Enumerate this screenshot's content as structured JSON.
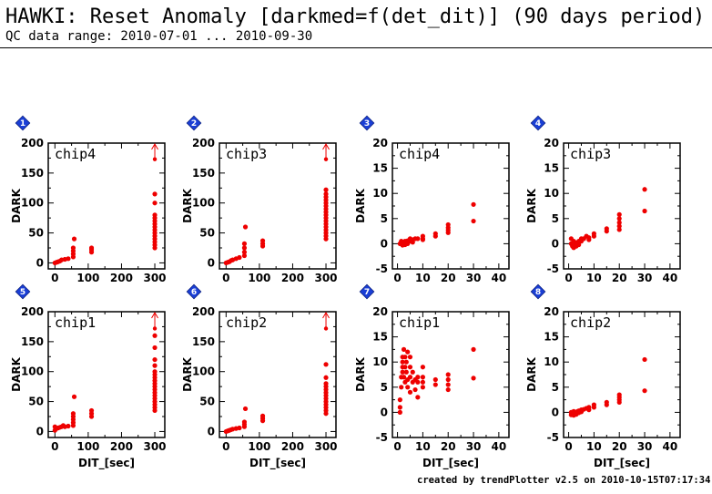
{
  "header": {
    "title": "HAWKI: Reset Anomaly [darkmed=f(det_dit)] (90 days period)",
    "subtitle": "QC data range: 2010-07-01 ... 2010-09-30"
  },
  "footer": "created by trendPlotter v2.5 on 2010-10-15T07:17:34",
  "colors": {
    "points": "#ee0000",
    "badge": "#1a3fd6",
    "axes": "#000000"
  },
  "chart_data": [
    {
      "type": "scatter",
      "badge": "1",
      "panel_label": "chip4",
      "xlabel": "",
      "ylabel": "DARK",
      "xlim": [
        -20,
        330
      ],
      "ylim": [
        -10,
        200
      ],
      "xticks": [
        0,
        100,
        200,
        300
      ],
      "yticks": [
        0,
        50,
        100,
        150,
        200
      ],
      "outlier_arrow_x": 300,
      "outlier_point": [
        300,
        173
      ],
      "points": [
        [
          0,
          0
        ],
        [
          5,
          1
        ],
        [
          10,
          2
        ],
        [
          15,
          3
        ],
        [
          20,
          5
        ],
        [
          30,
          6
        ],
        [
          40,
          7
        ],
        [
          55,
          10
        ],
        [
          55,
          15
        ],
        [
          55,
          20
        ],
        [
          55,
          25
        ],
        [
          58,
          40
        ],
        [
          110,
          18
        ],
        [
          110,
          22
        ],
        [
          110,
          25
        ],
        [
          300,
          25
        ],
        [
          300,
          30
        ],
        [
          300,
          35
        ],
        [
          300,
          40
        ],
        [
          300,
          45
        ],
        [
          300,
          50
        ],
        [
          300,
          55
        ],
        [
          300,
          60
        ],
        [
          300,
          65
        ],
        [
          300,
          70
        ],
        [
          300,
          75
        ],
        [
          300,
          80
        ],
        [
          300,
          100
        ],
        [
          300,
          115
        ]
      ]
    },
    {
      "type": "scatter",
      "badge": "2",
      "panel_label": "chip3",
      "xlabel": "",
      "ylabel": "DARK",
      "xlim": [
        -20,
        330
      ],
      "ylim": [
        -10,
        200
      ],
      "xticks": [
        0,
        100,
        200,
        300
      ],
      "yticks": [
        0,
        50,
        100,
        150,
        200
      ],
      "outlier_arrow_x": 300,
      "outlier_point": [
        300,
        173
      ],
      "points": [
        [
          0,
          0
        ],
        [
          5,
          1
        ],
        [
          10,
          2
        ],
        [
          15,
          4
        ],
        [
          20,
          5
        ],
        [
          30,
          7
        ],
        [
          40,
          9
        ],
        [
          55,
          12
        ],
        [
          55,
          18
        ],
        [
          55,
          25
        ],
        [
          55,
          32
        ],
        [
          58,
          60
        ],
        [
          110,
          28
        ],
        [
          110,
          32
        ],
        [
          110,
          37
        ],
        [
          300,
          40
        ],
        [
          300,
          45
        ],
        [
          300,
          50
        ],
        [
          300,
          55
        ],
        [
          300,
          60
        ],
        [
          300,
          65
        ],
        [
          300,
          70
        ],
        [
          300,
          75
        ],
        [
          300,
          80
        ],
        [
          300,
          85
        ],
        [
          300,
          90
        ],
        [
          300,
          95
        ],
        [
          300,
          100
        ],
        [
          300,
          105
        ],
        [
          300,
          110
        ],
        [
          300,
          115
        ],
        [
          300,
          122
        ]
      ]
    },
    {
      "type": "scatter",
      "badge": "3",
      "panel_label": "chip4",
      "xlabel": "",
      "ylabel": "DARK",
      "xlim": [
        -2,
        44
      ],
      "ylim": [
        -5,
        20
      ],
      "xticks": [
        0,
        10,
        20,
        30,
        40
      ],
      "yticks": [
        -5,
        0,
        5,
        10,
        15,
        20
      ],
      "points": [
        [
          1,
          0
        ],
        [
          1.5,
          0.5
        ],
        [
          2,
          0.3
        ],
        [
          2,
          -0.3
        ],
        [
          2.5,
          0
        ],
        [
          3,
          0.5
        ],
        [
          3,
          -0.2
        ],
        [
          3.5,
          0.2
        ],
        [
          4,
          0.6
        ],
        [
          4,
          0
        ],
        [
          5,
          0.5
        ],
        [
          5,
          1
        ],
        [
          6,
          0.8
        ],
        [
          6,
          0.3
        ],
        [
          7,
          1
        ],
        [
          8,
          1
        ],
        [
          10,
          1
        ],
        [
          10,
          1.5
        ],
        [
          10,
          0.8
        ],
        [
          15,
          1.5
        ],
        [
          15,
          2
        ],
        [
          20,
          2.2
        ],
        [
          20,
          2.7
        ],
        [
          20,
          3.2
        ],
        [
          20,
          3.8
        ],
        [
          30,
          4.5
        ],
        [
          30,
          7.8
        ]
      ]
    },
    {
      "type": "scatter",
      "badge": "4",
      "panel_label": "chip3",
      "xlabel": "",
      "ylabel": "DARK",
      "xlim": [
        -2,
        44
      ],
      "ylim": [
        -5,
        20
      ],
      "xticks": [
        0,
        10,
        20,
        30,
        40
      ],
      "yticks": [
        -5,
        0,
        5,
        10,
        15,
        20
      ],
      "points": [
        [
          1,
          1
        ],
        [
          1,
          0
        ],
        [
          1.5,
          -0.5
        ],
        [
          2,
          -0.8
        ],
        [
          2,
          0.5
        ],
        [
          2.5,
          -0.3
        ],
        [
          3,
          -0.5
        ],
        [
          3,
          0.2
        ],
        [
          3.5,
          0
        ],
        [
          4,
          0.5
        ],
        [
          4,
          -0.2
        ],
        [
          5,
          0.5
        ],
        [
          5,
          1
        ],
        [
          6,
          1
        ],
        [
          7,
          1.5
        ],
        [
          8,
          1.2
        ],
        [
          8,
          0.8
        ],
        [
          10,
          1.5
        ],
        [
          10,
          2
        ],
        [
          15,
          2.5
        ],
        [
          15,
          3
        ],
        [
          20,
          2.8
        ],
        [
          20,
          3.5
        ],
        [
          20,
          4.2
        ],
        [
          20,
          5
        ],
        [
          20,
          5.8
        ],
        [
          30,
          6.5
        ],
        [
          30,
          10.8
        ]
      ]
    },
    {
      "type": "scatter",
      "badge": "5",
      "panel_label": "chip1",
      "xlabel": "DIT_[sec]",
      "ylabel": "DARK",
      "xlim": [
        -20,
        330
      ],
      "ylim": [
        -10,
        200
      ],
      "xticks": [
        0,
        100,
        200,
        300
      ],
      "yticks": [
        0,
        50,
        100,
        150,
        200
      ],
      "outlier_arrow_x": 300,
      "outlier_point": [
        300,
        172
      ],
      "points": [
        [
          0,
          2
        ],
        [
          0,
          8
        ],
        [
          5,
          5
        ],
        [
          10,
          6
        ],
        [
          15,
          7
        ],
        [
          20,
          8
        ],
        [
          25,
          10
        ],
        [
          30,
          8
        ],
        [
          40,
          9
        ],
        [
          55,
          10
        ],
        [
          55,
          15
        ],
        [
          55,
          20
        ],
        [
          55,
          25
        ],
        [
          55,
          30
        ],
        [
          58,
          58
        ],
        [
          110,
          25
        ],
        [
          110,
          30
        ],
        [
          110,
          35
        ],
        [
          300,
          35
        ],
        [
          300,
          40
        ],
        [
          300,
          45
        ],
        [
          300,
          50
        ],
        [
          300,
          55
        ],
        [
          300,
          60
        ],
        [
          300,
          65
        ],
        [
          300,
          70
        ],
        [
          300,
          75
        ],
        [
          300,
          80
        ],
        [
          300,
          85
        ],
        [
          300,
          90
        ],
        [
          300,
          95
        ],
        [
          300,
          100
        ],
        [
          300,
          110
        ],
        [
          300,
          120
        ],
        [
          300,
          140
        ],
        [
          300,
          160
        ]
      ]
    },
    {
      "type": "scatter",
      "badge": "6",
      "panel_label": "chip2",
      "xlabel": "DIT_[sec]",
      "ylabel": "DARK",
      "xlim": [
        -20,
        330
      ],
      "ylim": [
        -10,
        200
      ],
      "xticks": [
        0,
        100,
        200,
        300
      ],
      "yticks": [
        0,
        50,
        100,
        150,
        200
      ],
      "outlier_arrow_x": 300,
      "outlier_point": [
        300,
        172
      ],
      "points": [
        [
          0,
          0
        ],
        [
          5,
          1
        ],
        [
          10,
          2
        ],
        [
          15,
          3
        ],
        [
          20,
          4
        ],
        [
          30,
          5
        ],
        [
          40,
          6
        ],
        [
          55,
          8
        ],
        [
          55,
          12
        ],
        [
          55,
          16
        ],
        [
          58,
          38
        ],
        [
          110,
          18
        ],
        [
          110,
          22
        ],
        [
          110,
          26
        ],
        [
          300,
          30
        ],
        [
          300,
          35
        ],
        [
          300,
          40
        ],
        [
          300,
          45
        ],
        [
          300,
          50
        ],
        [
          300,
          55
        ],
        [
          300,
          60
        ],
        [
          300,
          65
        ],
        [
          300,
          70
        ],
        [
          300,
          75
        ],
        [
          300,
          80
        ],
        [
          300,
          90
        ],
        [
          300,
          112
        ]
      ]
    },
    {
      "type": "scatter",
      "badge": "7",
      "panel_label": "chip1",
      "xlabel": "DIT_[sec]",
      "ylabel": "DARK",
      "xlim": [
        -2,
        44
      ],
      "ylim": [
        -5,
        20
      ],
      "xticks": [
        0,
        10,
        20,
        30,
        40
      ],
      "yticks": [
        -5,
        0,
        5,
        10,
        15,
        20
      ],
      "points": [
        [
          1,
          0
        ],
        [
          1,
          1
        ],
        [
          1,
          2.5
        ],
        [
          1.5,
          5
        ],
        [
          1.5,
          7
        ],
        [
          2,
          8
        ],
        [
          2,
          9
        ],
        [
          2,
          10
        ],
        [
          2,
          11
        ],
        [
          2.5,
          12.5
        ],
        [
          2.5,
          7
        ],
        [
          3,
          6
        ],
        [
          3,
          9
        ],
        [
          3,
          11
        ],
        [
          3.5,
          8
        ],
        [
          3.5,
          10
        ],
        [
          4,
          12
        ],
        [
          4,
          6.5
        ],
        [
          4,
          5
        ],
        [
          5,
          7
        ],
        [
          5,
          9
        ],
        [
          5,
          11
        ],
        [
          5,
          4
        ],
        [
          6,
          6
        ],
        [
          6,
          8
        ],
        [
          7,
          6.5
        ],
        [
          7,
          4.5
        ],
        [
          8,
          6
        ],
        [
          8,
          7
        ],
        [
          8,
          3
        ],
        [
          10,
          5
        ],
        [
          10,
          6
        ],
        [
          10,
          7
        ],
        [
          10,
          9
        ],
        [
          15,
          5.5
        ],
        [
          15,
          6.5
        ],
        [
          20,
          4.5
        ],
        [
          20,
          5.5
        ],
        [
          20,
          6.5
        ],
        [
          20,
          7.5
        ],
        [
          30,
          6.8
        ],
        [
          30,
          12.5
        ]
      ]
    },
    {
      "type": "scatter",
      "badge": "8",
      "panel_label": "chip2",
      "xlabel": "DIT_[sec]",
      "ylabel": "DARK",
      "xlim": [
        -2,
        44
      ],
      "ylim": [
        -5,
        20
      ],
      "xticks": [
        0,
        10,
        20,
        30,
        40
      ],
      "yticks": [
        -5,
        0,
        5,
        10,
        15,
        20
      ],
      "points": [
        [
          1,
          0
        ],
        [
          1,
          -0.5
        ],
        [
          1.5,
          -0.3
        ],
        [
          2,
          -0.6
        ],
        [
          2,
          0.2
        ],
        [
          2.5,
          -0.2
        ],
        [
          3,
          0
        ],
        [
          3,
          -0.4
        ],
        [
          3.5,
          0.2
        ],
        [
          4,
          0.3
        ],
        [
          4,
          -0.1
        ],
        [
          5,
          0.5
        ],
        [
          5,
          0.1
        ],
        [
          6,
          0.6
        ],
        [
          7,
          0.8
        ],
        [
          8,
          1
        ],
        [
          8,
          0.5
        ],
        [
          10,
          1
        ],
        [
          10,
          1.5
        ],
        [
          15,
          1.5
        ],
        [
          15,
          2
        ],
        [
          20,
          2
        ],
        [
          20,
          2.5
        ],
        [
          20,
          3
        ],
        [
          20,
          3.5
        ],
        [
          30,
          4.3
        ],
        [
          30,
          10.5
        ]
      ]
    }
  ]
}
